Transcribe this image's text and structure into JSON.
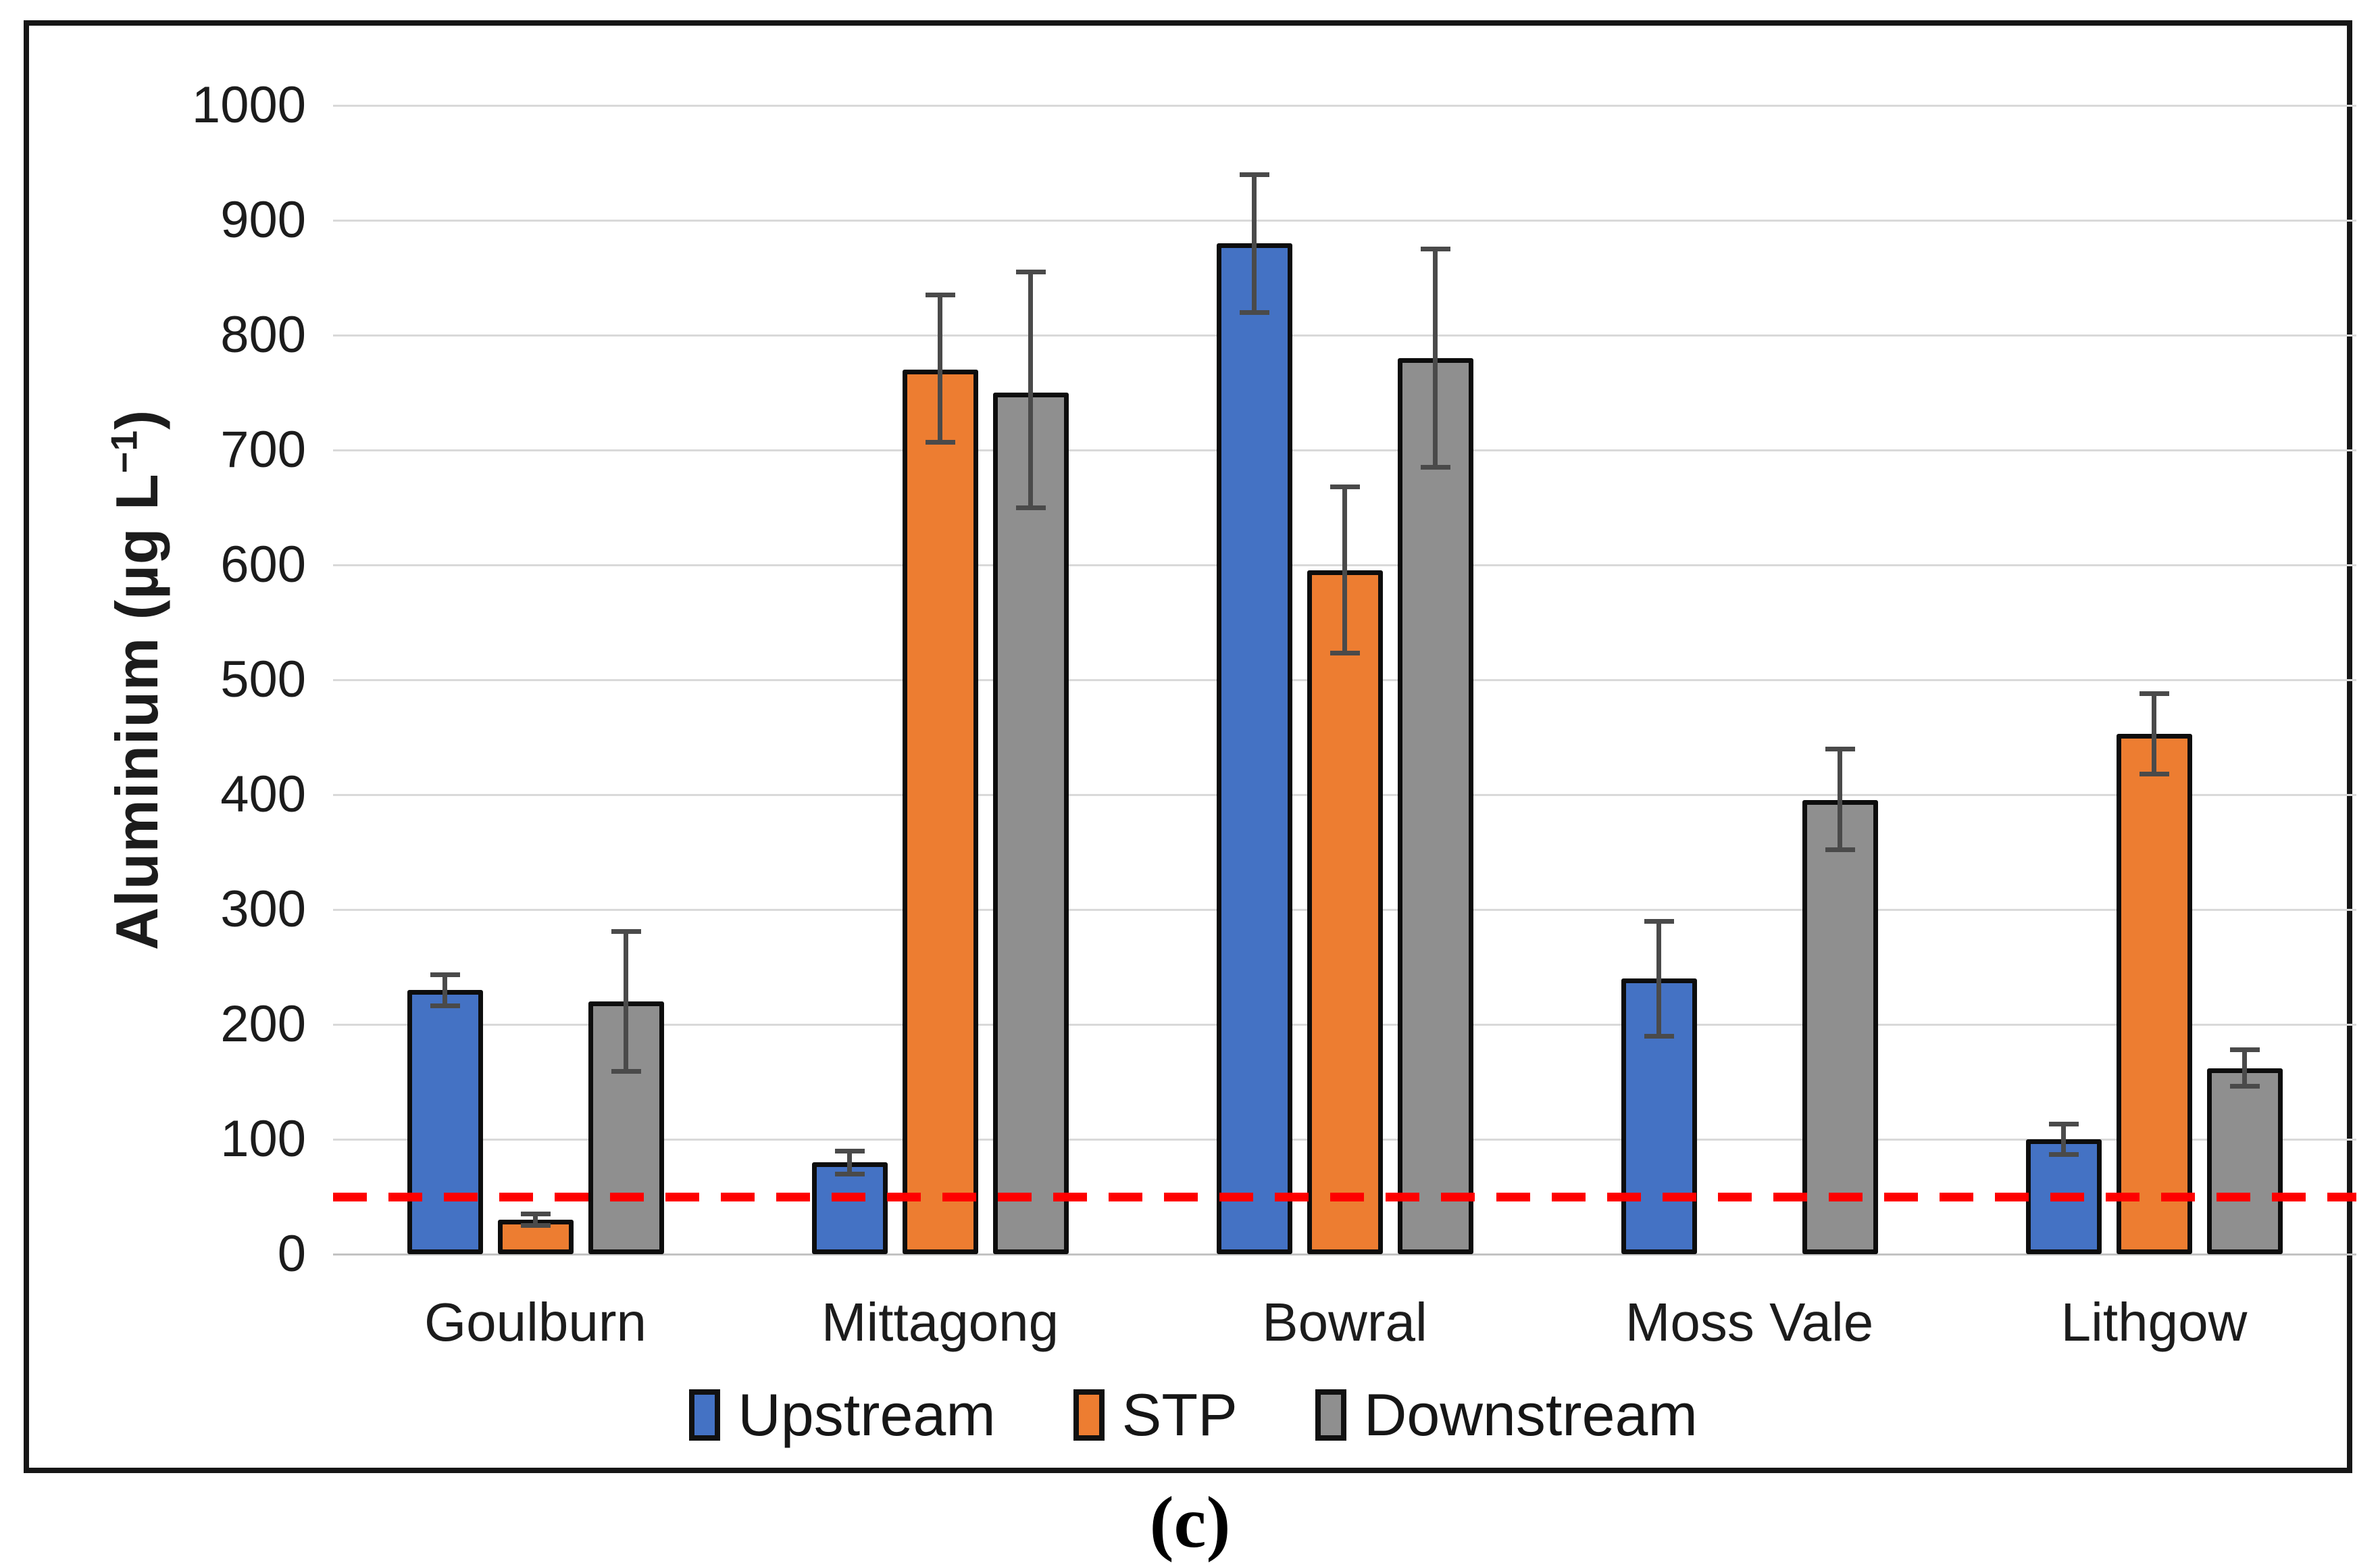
{
  "figure": {
    "caption": "(c)"
  },
  "chart_data": {
    "type": "bar",
    "title": "",
    "xlabel": "",
    "ylabel": "Aluminium (µg L−1)",
    "ylabel_parts": {
      "pre": "Aluminium (µg L",
      "sup": "−1",
      "post": ")"
    },
    "categories": [
      "Goulburn",
      "Mittagong",
      "Bowral",
      "Moss Vale",
      "Lithgow"
    ],
    "series": [
      {
        "name": "Upstream",
        "color": "#4472C4",
        "values": [
          230,
          80,
          880,
          240,
          100
        ],
        "err_low": [
          216,
          70,
          820,
          190,
          87
        ],
        "err_high": [
          243,
          90,
          940,
          290,
          113
        ]
      },
      {
        "name": "STP",
        "color": "#ED7D31",
        "values": [
          30,
          770,
          595,
          null,
          453
        ],
        "err_low": [
          25,
          707,
          523,
          null,
          418
        ],
        "err_high": [
          35,
          835,
          668,
          null,
          488
        ]
      },
      {
        "name": "Downstream",
        "color": "#8F8F8F",
        "values": [
          220,
          750,
          780,
          395,
          162
        ],
        "err_low": [
          159,
          650,
          685,
          352,
          146
        ],
        "err_high": [
          281,
          855,
          875,
          440,
          178
        ]
      }
    ],
    "ylim": [
      0,
      1000
    ],
    "y_ticks": [
      0,
      100,
      200,
      300,
      400,
      500,
      600,
      700,
      800,
      900,
      1000
    ],
    "grid": true,
    "legend_position": "bottom",
    "threshold_line": {
      "value": 50,
      "color": "#FF0000",
      "style": "dashed"
    },
    "error_bar_color": "#4A4A4A"
  }
}
